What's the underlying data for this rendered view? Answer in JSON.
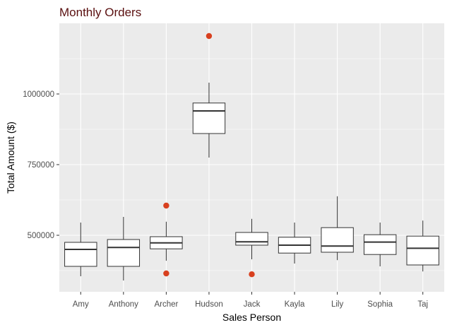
{
  "chart_data": {
    "type": "boxplot",
    "title": "Monthly Orders",
    "xlabel": "Sales Person",
    "ylabel": "Total Amount ($)",
    "categories": [
      "Amy",
      "Anthony",
      "Archer",
      "Hudson",
      "Jack",
      "Kayla",
      "Lily",
      "Sophia",
      "Taj"
    ],
    "ylim": [
      300000,
      1250000
    ],
    "yticks": [
      500000,
      750000,
      1000000
    ],
    "ytick_labels": [
      "500000",
      "750000",
      "1000000"
    ],
    "boxes": [
      {
        "name": "Amy",
        "lower_whisker": 355000,
        "q1": 390000,
        "median": 450000,
        "q3": 475000,
        "upper_whisker": 545000,
        "outliers": []
      },
      {
        "name": "Anthony",
        "lower_whisker": 340000,
        "q1": 390000,
        "median": 457000,
        "q3": 485000,
        "upper_whisker": 565000,
        "outliers": []
      },
      {
        "name": "Archer",
        "lower_whisker": 410000,
        "q1": 452000,
        "median": 473000,
        "q3": 495000,
        "upper_whisker": 548000,
        "outliers": [
          605000,
          365000
        ]
      },
      {
        "name": "Hudson",
        "lower_whisker": 775000,
        "q1": 860000,
        "median": 940000,
        "q3": 968000,
        "upper_whisker": 1040000,
        "outliers": [
          1205000
        ]
      },
      {
        "name": "Jack",
        "lower_whisker": 415000,
        "q1": 465000,
        "median": 477000,
        "q3": 510000,
        "upper_whisker": 558000,
        "outliers": [
          362000
        ]
      },
      {
        "name": "Kayla",
        "lower_whisker": 400000,
        "q1": 437000,
        "median": 465000,
        "q3": 493000,
        "upper_whisker": 545000,
        "outliers": []
      },
      {
        "name": "Lily",
        "lower_whisker": 412000,
        "q1": 440000,
        "median": 462000,
        "q3": 527000,
        "upper_whisker": 638000,
        "outliers": []
      },
      {
        "name": "Sophia",
        "lower_whisker": 390000,
        "q1": 432000,
        "median": 476000,
        "q3": 502000,
        "upper_whisker": 545000,
        "outliers": []
      },
      {
        "name": "Taj",
        "lower_whisker": 372000,
        "q1": 395000,
        "median": 454000,
        "q3": 497000,
        "upper_whisker": 552000,
        "outliers": []
      }
    ],
    "grid": true,
    "legend": "none",
    "colors": {
      "panel_background": "#ebebeb",
      "grid_major": "#ffffff",
      "box_fill": "#ffffff",
      "box_line": "#333333",
      "outlier": "#d8401f",
      "title": "#5a1010",
      "tick_text": "#4d4d4d"
    }
  }
}
